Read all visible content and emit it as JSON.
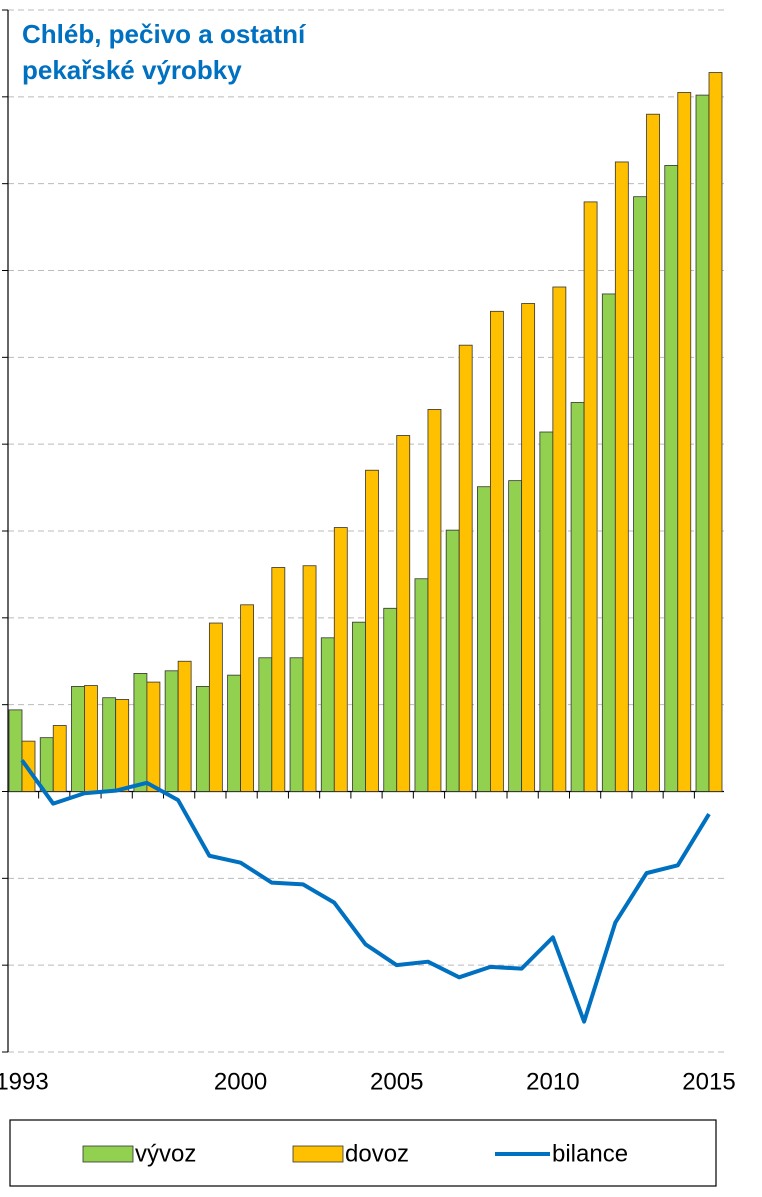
{
  "chart_data": {
    "type": "bar",
    "title": [
      "Chléb, pečivo a ostatní",
      "pekařské výrobky"
    ],
    "categories": [
      "1993",
      null,
      null,
      null,
      null,
      null,
      null,
      "2000",
      null,
      null,
      null,
      null,
      "2005",
      null,
      null,
      null,
      null,
      "2010",
      null,
      null,
      null,
      null,
      "2015"
    ],
    "series": [
      {
        "name": "vývoz",
        "type": "bar",
        "color": "#92D050",
        "values": [
          0.94,
          0.62,
          1.21,
          1.08,
          1.36,
          1.39,
          1.21,
          1.34,
          1.54,
          1.54,
          1.77,
          1.95,
          2.11,
          2.45,
          3.01,
          3.51,
          3.58,
          4.14,
          4.48,
          5.73,
          6.85,
          7.21,
          8.02
        ]
      },
      {
        "name": "dovoz",
        "type": "bar",
        "color": "#FFC000",
        "values": [
          0.58,
          0.76,
          1.22,
          1.06,
          1.26,
          1.5,
          1.94,
          2.15,
          2.58,
          2.6,
          3.04,
          3.7,
          4.1,
          4.4,
          5.14,
          5.53,
          5.62,
          5.81,
          6.79,
          7.25,
          7.8,
          8.05,
          8.28
        ]
      },
      {
        "name": "bilance",
        "type": "line",
        "color": "#0070C0",
        "values": [
          0.36,
          -0.14,
          -0.02,
          0.01,
          0.1,
          -0.1,
          -0.74,
          -0.82,
          -1.05,
          -1.07,
          -1.28,
          -1.76,
          -2.0,
          -1.96,
          -2.14,
          -2.02,
          -2.04,
          -1.68,
          -2.65,
          -1.51,
          -0.94,
          -0.85,
          -0.26
        ]
      }
    ],
    "ylim": [
      -3,
      9
    ],
    "yticks": [
      -3,
      -2,
      -1,
      0,
      1,
      2,
      3,
      4,
      5,
      6,
      7,
      8,
      9
    ],
    "grid": true
  }
}
